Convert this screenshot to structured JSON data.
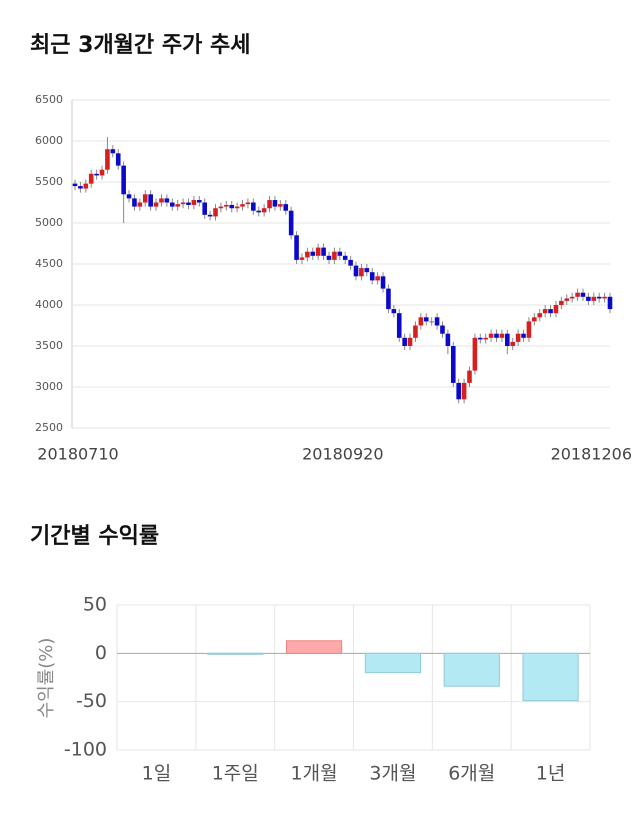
{
  "chart_data": [
    {
      "type": "candlestick",
      "title": "최근 3개월간 주가 추세",
      "categories": [
        "20180710",
        null,
        null,
        null,
        null,
        null,
        null,
        null,
        null,
        null,
        null,
        null,
        null,
        null,
        null,
        null,
        null,
        null,
        null,
        null,
        null,
        null,
        null,
        null,
        null,
        null,
        null,
        null,
        null,
        null,
        null,
        null,
        null,
        null,
        null,
        null,
        null,
        null,
        null,
        null,
        null,
        null,
        null,
        null,
        null,
        null,
        null,
        null,
        null,
        "20180920",
        null,
        null,
        null,
        null,
        null,
        null,
        null,
        null,
        null,
        null,
        null,
        null,
        null,
        null,
        null,
        null,
        null,
        null,
        null,
        null,
        null,
        null,
        null,
        null,
        null,
        null,
        null,
        null,
        null,
        null,
        null,
        null,
        null,
        null,
        null,
        null,
        null,
        null,
        null,
        null,
        null,
        null,
        null,
        null,
        null,
        null,
        null,
        null,
        null,
        "20181206"
      ],
      "open": [
        5480,
        5450,
        5420,
        5480,
        5600,
        5580,
        5650,
        5900,
        5850,
        5700,
        5350,
        5300,
        5200,
        5250,
        5350,
        5200,
        5250,
        5300,
        5250,
        5200,
        5230,
        5250,
        5220,
        5280,
        5250,
        5100,
        5080,
        5180,
        5200,
        5220,
        5180,
        5200,
        5230,
        5250,
        5150,
        5130,
        5180,
        5280,
        5200,
        5230,
        5150,
        4850,
        4550,
        4580,
        4650,
        4600,
        4700,
        4600,
        4550,
        4650,
        4600,
        4550,
        4480,
        4350,
        4450,
        4400,
        4300,
        4350,
        4200,
        3950,
        3900,
        3600,
        3500,
        3600,
        3750,
        3850,
        3800,
        3850,
        3750,
        3650,
        3500,
        3050,
        2850,
        3050,
        3200,
        3600,
        3580,
        3600,
        3650,
        3600,
        3650,
        3500,
        3550,
        3650,
        3600,
        3800,
        3850,
        3900,
        3950,
        3900,
        4000,
        4050,
        4080,
        4100,
        4150,
        4100,
        4050,
        4100,
        4080,
        4100
      ],
      "high": [
        5530,
        5500,
        5530,
        5650,
        5650,
        5700,
        6050,
        5950,
        5900,
        5750,
        5400,
        5350,
        5300,
        5400,
        5400,
        5300,
        5350,
        5350,
        5300,
        5280,
        5300,
        5300,
        5330,
        5330,
        5300,
        5150,
        5230,
        5250,
        5270,
        5270,
        5250,
        5280,
        5300,
        5300,
        5200,
        5230,
        5330,
        5330,
        5280,
        5280,
        5200,
        4900,
        4630,
        4700,
        4700,
        4750,
        4750,
        4650,
        4700,
        4700,
        4650,
        4600,
        4530,
        4500,
        4500,
        4450,
        4400,
        4400,
        4250,
        4000,
        3950,
        3650,
        3650,
        3800,
        3900,
        3900,
        3850,
        3900,
        3800,
        3700,
        3550,
        3100,
        3100,
        3250,
        3650,
        3650,
        3650,
        3700,
        3700,
        3700,
        3700,
        3600,
        3700,
        3700,
        3850,
        3900,
        3950,
        4000,
        4000,
        4050,
        4100,
        4130,
        4150,
        4200,
        4200,
        4150,
        4150,
        4150,
        4150,
        4150
      ],
      "low": [
        5400,
        5370,
        5370,
        5430,
        5530,
        5530,
        5600,
        5800,
        5650,
        5000,
        5250,
        5150,
        5150,
        5200,
        5150,
        5150,
        5200,
        5200,
        5150,
        5150,
        5180,
        5170,
        5170,
        5200,
        5050,
        5030,
        5030,
        5130,
        5150,
        5130,
        5130,
        5150,
        5180,
        5100,
        5080,
        5080,
        5130,
        5150,
        5150,
        5100,
        4800,
        4500,
        4500,
        4530,
        4550,
        4550,
        4550,
        4500,
        4500,
        4550,
        4500,
        4430,
        4300,
        4300,
        4350,
        4250,
        4250,
        4150,
        3900,
        3850,
        3550,
        3450,
        3450,
        3550,
        3700,
        3750,
        3750,
        3700,
        3600,
        3400,
        3000,
        2800,
        2800,
        3000,
        3150,
        3530,
        3530,
        3550,
        3550,
        3550,
        3400,
        3450,
        3500,
        3550,
        3550,
        3750,
        3800,
        3850,
        3850,
        3850,
        3950,
        4000,
        4030,
        4050,
        4050,
        4000,
        4000,
        4030,
        4030,
        3900
      ],
      "close": [
        5450,
        5420,
        5480,
        5600,
        5580,
        5650,
        5900,
        5850,
        5700,
        5350,
        5300,
        5200,
        5250,
        5350,
        5200,
        5250,
        5300,
        5250,
        5200,
        5230,
        5250,
        5220,
        5280,
        5250,
        5100,
        5080,
        5180,
        5200,
        5220,
        5180,
        5200,
        5230,
        5250,
        5150,
        5130,
        5180,
        5280,
        5200,
        5230,
        5150,
        4850,
        4550,
        4580,
        4650,
        4600,
        4700,
        4600,
        4550,
        4650,
        4600,
        4550,
        4480,
        4350,
        4450,
        4400,
        4300,
        4350,
        4200,
        3950,
        3900,
        3600,
        3500,
        3600,
        3750,
        3850,
        3800,
        3800,
        3750,
        3650,
        3500,
        3050,
        2850,
        3050,
        3200,
        3600,
        3580,
        3600,
        3650,
        3600,
        3650,
        3500,
        3550,
        3650,
        3600,
        3800,
        3850,
        3900,
        3950,
        3900,
        4000,
        4050,
        4080,
        4100,
        4150,
        4100,
        4050,
        4100,
        4080,
        4100,
        3950
      ],
      "up_color": "#d62020",
      "down_color": "#0a0ac8",
      "ylim": [
        2500,
        6500
      ],
      "yticks": [
        2500,
        3000,
        3500,
        4000,
        4500,
        5000,
        5500,
        6000,
        6500
      ],
      "grid": true
    },
    {
      "type": "bar",
      "title": "기간별 수익률",
      "ylabel": "수익률(%)",
      "categories": [
        "1일",
        "1주일",
        "1개월",
        "3개월",
        "6개월",
        "1년"
      ],
      "values": [
        0,
        -1,
        13,
        -20,
        -34,
        -49
      ],
      "positive_color": "#ffaaaa",
      "negative_color": "#b3e9f2",
      "ylim": [
        -100,
        50
      ],
      "yticks": [
        -100,
        -50,
        0,
        50
      ],
      "grid": true
    }
  ]
}
